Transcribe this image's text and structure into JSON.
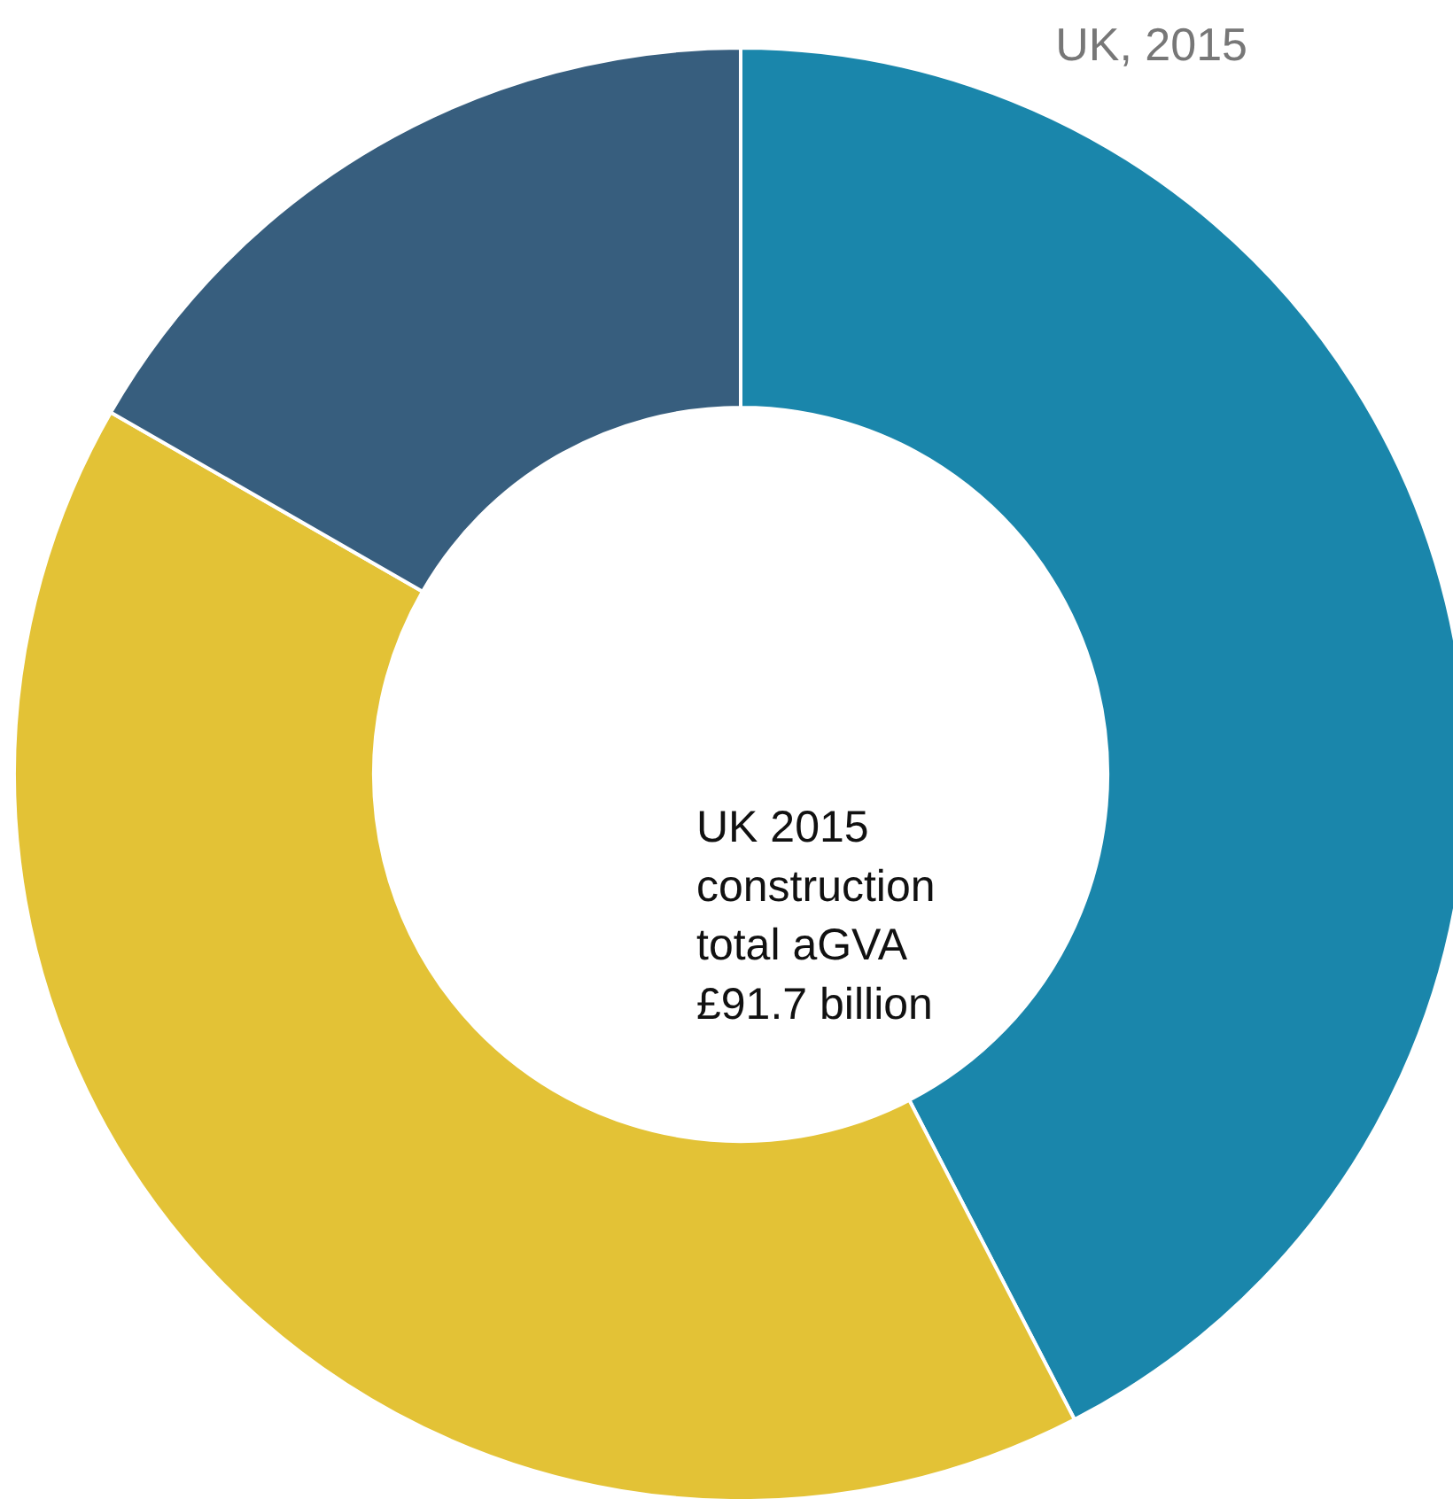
{
  "chart_data": {
    "type": "donut",
    "title": "UK, 2015",
    "categories": [
      null,
      null,
      null
    ],
    "values": [
      42.4,
      40.9,
      16.7
    ],
    "colors": [
      "#1a86ab",
      "#e3c236",
      "#375e7e"
    ],
    "annotations": [
      "UK 2015 construction total aGVA £91.7 billion"
    ]
  }
}
